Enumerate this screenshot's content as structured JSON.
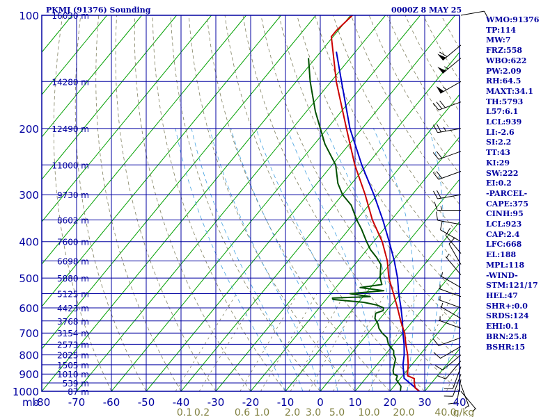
{
  "header": {
    "station_title": "PKMJ (91376) Sounding",
    "valid_time": "0000Z  8 MAY 25"
  },
  "indices": [
    "WMO:91376",
    "TP:114",
    "MW:7",
    "FRZ:558",
    "WBO:622",
    "PW:2.09",
    "RH:64.5",
    "MAXT:34.1",
    "TH:5793",
    "L57:6.1",
    "LCL:939",
    "LI:-2.6",
    "SI:2.2",
    "TT:43",
    "KI:29",
    "SW:222",
    "EI:0.2",
    "-PARCEL-",
    "CAPE:375",
    "CINH:95",
    "LCL:923",
    "CAP:2.4",
    "LFC:668",
    "EL:188",
    "MPL:118",
    "-WIND-",
    "STM:121/17",
    "HEL:47",
    "SHR+:0.0",
    "SRDS:124",
    "EHI:0.1",
    "BRN:25.8",
    "BSHR:15"
  ],
  "colors": {
    "frame": "#0000a0",
    "isobar": "#0000a0",
    "isotherm": "#00a000",
    "dry_adiabat": "#808060",
    "moist_adiabat": "#40a0e0",
    "mixing_ratio": "#808060",
    "temperature": "#cc0000",
    "dewpoint": "#005000",
    "parcel": "#0000cc",
    "wind_barb": "#000000",
    "mixing_label": "#808040"
  },
  "chart_data": {
    "type": "skew-t log-p sounding",
    "x_axis_unit_label": "mb",
    "temperature_ticks": [
      -80,
      -70,
      -60,
      -50,
      -40,
      -30,
      -20,
      -10,
      0,
      10,
      20,
      30,
      40
    ],
    "temperature_tick_labels": [
      "-80",
      "-70",
      "-60",
      "-50",
      "-40",
      "-30",
      "-20",
      "-10",
      "0",
      "10",
      "20",
      "30",
      "40"
    ],
    "pressure_levels": [
      100,
      200,
      300,
      400,
      500,
      600,
      700,
      800,
      900,
      1000
    ],
    "pressure_labels": [
      "100",
      "200",
      "300",
      "400",
      "500",
      "600",
      "700",
      "800",
      "900",
      "1000"
    ],
    "height_labels": [
      {
        "p": 100,
        "label": "16630 m"
      },
      {
        "p": 150,
        "label": "14280 m"
      },
      {
        "p": 200,
        "label": "12490 m"
      },
      {
        "p": 250,
        "label": "11000 m"
      },
      {
        "p": 300,
        "label": "9730 m"
      },
      {
        "p": 350,
        "label": "8602 m"
      },
      {
        "p": 400,
        "label": "7600 m"
      },
      {
        "p": 450,
        "label": "6698 m"
      },
      {
        "p": 500,
        "label": "5880 m"
      },
      {
        "p": 550,
        "label": "5125 m"
      },
      {
        "p": 600,
        "label": "4423 m"
      },
      {
        "p": 650,
        "label": "3768 m"
      },
      {
        "p": 700,
        "label": "3154 m"
      },
      {
        "p": 750,
        "label": "2573 m"
      },
      {
        "p": 800,
        "label": "2025 m"
      },
      {
        "p": 850,
        "label": "1505 m"
      },
      {
        "p": 900,
        "label": "1010 m"
      },
      {
        "p": 950,
        "label": "539 m"
      },
      {
        "p": 1000,
        "label": "87 m"
      }
    ],
    "mixing_ratio_labels": [
      "0.1",
      "0.2",
      "0.6",
      "1.0",
      "2.0",
      "3.0",
      "5.0",
      "10.0",
      "20.0",
      "40.0",
      "g/kg"
    ],
    "mixing_ratio_values": [
      0.1,
      0.2,
      0.6,
      1.0,
      2.0,
      3.0,
      5.0,
      10.0,
      20.0,
      40.0
    ],
    "temperature": [
      {
        "p": 1000,
        "t": 28.5
      },
      {
        "p": 980,
        "t": 26.5
      },
      {
        "p": 950,
        "t": 25.0
      },
      {
        "p": 925,
        "t": 24.0
      },
      {
        "p": 910,
        "t": 21.5
      },
      {
        "p": 900,
        "t": 21.0
      },
      {
        "p": 850,
        "t": 19.0
      },
      {
        "p": 800,
        "t": 16.5
      },
      {
        "p": 750,
        "t": 13.5
      },
      {
        "p": 700,
        "t": 10.5
      },
      {
        "p": 650,
        "t": 6.5
      },
      {
        "p": 600,
        "t": 2.5
      },
      {
        "p": 550,
        "t": -2.0
      },
      {
        "p": 500,
        "t": -7.0
      },
      {
        "p": 450,
        "t": -11.5
      },
      {
        "p": 400,
        "t": -17.5
      },
      {
        "p": 350,
        "t": -25.5
      },
      {
        "p": 300,
        "t": -33.5
      },
      {
        "p": 250,
        "t": -43.5
      },
      {
        "p": 200,
        "t": -54.5
      },
      {
        "p": 150,
        "t": -68.5
      },
      {
        "p": 114,
        "t": -80.5
      },
      {
        "p": 110,
        "t": -80.5
      },
      {
        "p": 100,
        "t": -79.5
      }
    ],
    "dewpoint": [
      {
        "p": 1000,
        "t": 23.0
      },
      {
        "p": 985,
        "t": 22.5
      },
      {
        "p": 970,
        "t": 22.0
      },
      {
        "p": 950,
        "t": 20.5
      },
      {
        "p": 930,
        "t": 19.0
      },
      {
        "p": 910,
        "t": 18.5
      },
      {
        "p": 900,
        "t": 17.0
      },
      {
        "p": 880,
        "t": 16.0
      },
      {
        "p": 850,
        "t": 15.0
      },
      {
        "p": 820,
        "t": 14.0
      },
      {
        "p": 800,
        "t": 12.5
      },
      {
        "p": 780,
        "t": 11.5
      },
      {
        "p": 750,
        "t": 8.5
      },
      {
        "p": 720,
        "t": 6.5
      },
      {
        "p": 700,
        "t": 4.0
      },
      {
        "p": 680,
        "t": 2.0
      },
      {
        "p": 660,
        "t": 0.5
      },
      {
        "p": 640,
        "t": -1.5
      },
      {
        "p": 620,
        "t": -2.5
      },
      {
        "p": 610,
        "t": -1.0
      },
      {
        "p": 600,
        "t": -1.5
      },
      {
        "p": 590,
        "t": -4.0
      },
      {
        "p": 580,
        "t": -8.5
      },
      {
        "p": 570,
        "t": -18.0
      },
      {
        "p": 565,
        "t": -18.5
      },
      {
        "p": 560,
        "t": -8.0
      },
      {
        "p": 550,
        "t": -14.5
      },
      {
        "p": 540,
        "t": -5.5
      },
      {
        "p": 530,
        "t": -13.0
      },
      {
        "p": 520,
        "t": -7.5
      },
      {
        "p": 500,
        "t": -9.5
      },
      {
        "p": 480,
        "t": -11.0
      },
      {
        "p": 460,
        "t": -12.5
      },
      {
        "p": 440,
        "t": -15.5
      },
      {
        "p": 420,
        "t": -19.0
      },
      {
        "p": 400,
        "t": -22.0
      },
      {
        "p": 370,
        "t": -26.5
      },
      {
        "p": 350,
        "t": -30.0
      },
      {
        "p": 320,
        "t": -35.0
      },
      {
        "p": 300,
        "t": -40.0
      },
      {
        "p": 280,
        "t": -44.0
      },
      {
        "p": 250,
        "t": -49.0
      },
      {
        "p": 220,
        "t": -57.0
      },
      {
        "p": 200,
        "t": -62.0
      },
      {
        "p": 180,
        "t": -67.5
      },
      {
        "p": 150,
        "t": -76.0
      },
      {
        "p": 130,
        "t": -82.0
      }
    ],
    "parcel": [
      {
        "p": 1000,
        "t": 28.5
      },
      {
        "p": 923,
        "t": 21.0
      },
      {
        "p": 850,
        "t": 17.5
      },
      {
        "p": 800,
        "t": 15.5
      },
      {
        "p": 750,
        "t": 13.0
      },
      {
        "p": 700,
        "t": 10.0
      },
      {
        "p": 650,
        "t": 7.0
      },
      {
        "p": 600,
        "t": 3.5
      },
      {
        "p": 550,
        "t": -0.5
      },
      {
        "p": 500,
        "t": -4.5
      },
      {
        "p": 450,
        "t": -9.5
      },
      {
        "p": 400,
        "t": -15.5
      },
      {
        "p": 350,
        "t": -22.5
      },
      {
        "p": 300,
        "t": -31.0
      },
      {
        "p": 250,
        "t": -41.5
      },
      {
        "p": 200,
        "t": -53.5
      },
      {
        "p": 150,
        "t": -67.0
      },
      {
        "p": 125,
        "t": -75.5
      }
    ],
    "wind_barbs": [
      {
        "p": 100,
        "dir": 80,
        "kt": 10
      },
      {
        "p": 120,
        "dir": 230,
        "kt": 60
      },
      {
        "p": 130,
        "dir": 230,
        "kt": 55
      },
      {
        "p": 150,
        "dir": 240,
        "kt": 55
      },
      {
        "p": 170,
        "dir": 250,
        "kt": 30
      },
      {
        "p": 200,
        "dir": 260,
        "kt": 25
      },
      {
        "p": 230,
        "dir": 250,
        "kt": 20
      },
      {
        "p": 260,
        "dir": 250,
        "kt": 20
      },
      {
        "p": 300,
        "dir": 260,
        "kt": 20
      },
      {
        "p": 330,
        "dir": 270,
        "kt": 15
      },
      {
        "p": 360,
        "dir": 280,
        "kt": 10
      },
      {
        "p": 400,
        "dir": 300,
        "kt": 10
      },
      {
        "p": 430,
        "dir": 320,
        "kt": 10
      },
      {
        "p": 460,
        "dir": 330,
        "kt": 10
      },
      {
        "p": 490,
        "dir": 320,
        "kt": 5
      },
      {
        "p": 530,
        "dir": 300,
        "kt": 5
      },
      {
        "p": 560,
        "dir": 290,
        "kt": 5
      },
      {
        "p": 600,
        "dir": 290,
        "kt": 5
      },
      {
        "p": 640,
        "dir": 300,
        "kt": 5
      },
      {
        "p": 680,
        "dir": 290,
        "kt": 5
      },
      {
        "p": 720,
        "dir": 250,
        "kt": 10
      },
      {
        "p": 760,
        "dir": 240,
        "kt": 10
      },
      {
        "p": 800,
        "dir": 230,
        "kt": 10
      },
      {
        "p": 830,
        "dir": 220,
        "kt": 10
      },
      {
        "p": 860,
        "dir": 200,
        "kt": 10
      },
      {
        "p": 900,
        "dir": 200,
        "kt": 10
      },
      {
        "p": 930,
        "dir": 190,
        "kt": 10
      },
      {
        "p": 960,
        "dir": 160,
        "kt": 5
      },
      {
        "p": 1000,
        "dir": 140,
        "kt": 5
      }
    ],
    "grid": true
  }
}
